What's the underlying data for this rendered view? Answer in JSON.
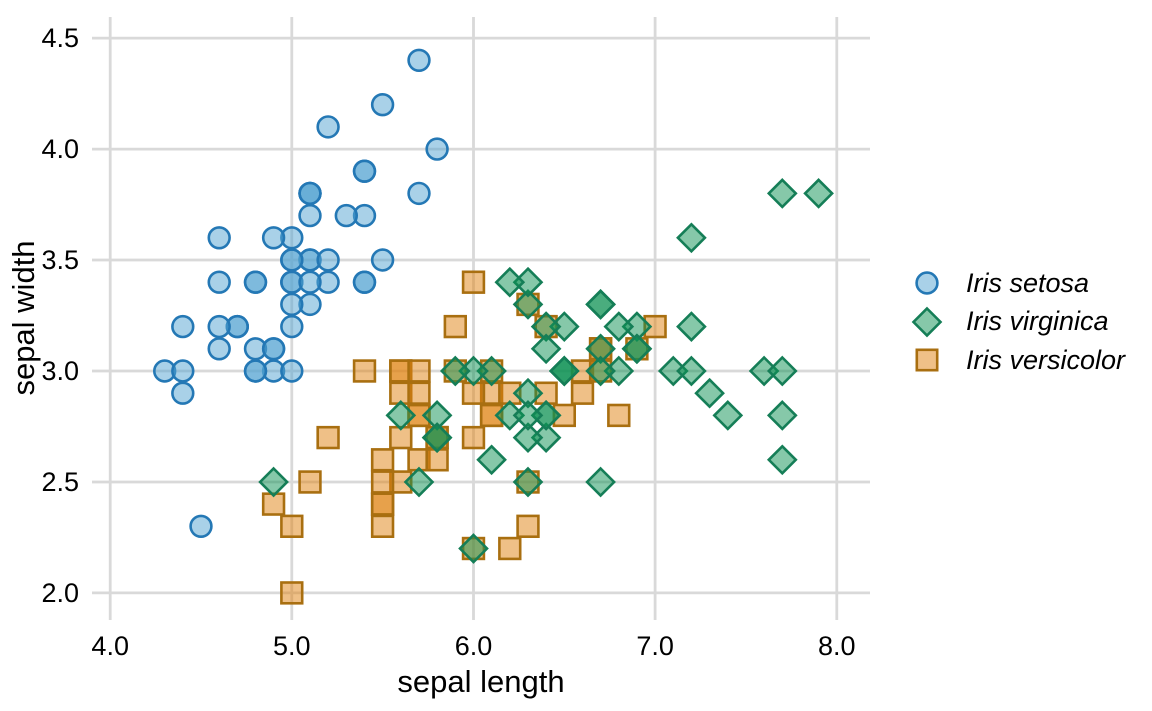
{
  "figure": {
    "background": "#ffffff"
  },
  "chart_data": {
    "type": "scatter",
    "title": "",
    "xlabel": "sepal length",
    "ylabel": "sepal width",
    "xlim": [
      3.9,
      8.183
    ],
    "ylim": [
      1.878,
      4.595
    ],
    "grid": true,
    "grid_color": "#d9d9d9",
    "text_color": "#000000",
    "legend_position": "right",
    "x_ticks": {
      "values": [
        4.0,
        5.0,
        6.0,
        7.0,
        8.0
      ],
      "labels": [
        "4.0",
        "5.0",
        "6.0",
        "7.0",
        "8.0"
      ]
    },
    "y_ticks": {
      "values": [
        2.0,
        2.5,
        3.0,
        3.5,
        4.0,
        4.5
      ],
      "labels": [
        "2.0",
        "2.5",
        "3.0",
        "3.5",
        "4.0",
        "4.5"
      ]
    },
    "z_order": [
      0,
      2,
      1
    ],
    "series": [
      {
        "name": "Iris setosa",
        "marker": "circle",
        "fill": "#53a3d1",
        "stroke": "#2478b5",
        "fill_opacity": 0.5,
        "points": [
          [
            5.1,
            3.5
          ],
          [
            4.9,
            3.0
          ],
          [
            4.7,
            3.2
          ],
          [
            4.6,
            3.1
          ],
          [
            5.0,
            3.6
          ],
          [
            5.4,
            3.9
          ],
          [
            4.6,
            3.4
          ],
          [
            5.0,
            3.4
          ],
          [
            4.4,
            2.9
          ],
          [
            4.9,
            3.1
          ],
          [
            5.4,
            3.7
          ],
          [
            4.8,
            3.4
          ],
          [
            4.8,
            3.0
          ],
          [
            4.3,
            3.0
          ],
          [
            5.8,
            4.0
          ],
          [
            5.7,
            4.4
          ],
          [
            5.4,
            3.9
          ],
          [
            5.1,
            3.5
          ],
          [
            5.7,
            3.8
          ],
          [
            5.1,
            3.8
          ],
          [
            5.4,
            3.4
          ],
          [
            5.1,
            3.7
          ],
          [
            4.6,
            3.6
          ],
          [
            5.1,
            3.3
          ],
          [
            4.8,
            3.4
          ],
          [
            5.0,
            3.0
          ],
          [
            5.0,
            3.4
          ],
          [
            5.2,
            3.5
          ],
          [
            5.2,
            3.4
          ],
          [
            4.7,
            3.2
          ],
          [
            4.8,
            3.1
          ],
          [
            5.4,
            3.4
          ],
          [
            5.2,
            4.1
          ],
          [
            5.5,
            4.2
          ],
          [
            4.9,
            3.1
          ],
          [
            5.0,
            3.2
          ],
          [
            5.5,
            3.5
          ],
          [
            4.9,
            3.6
          ],
          [
            4.4,
            3.0
          ],
          [
            5.1,
            3.4
          ],
          [
            5.0,
            3.5
          ],
          [
            4.5,
            2.3
          ],
          [
            4.4,
            3.2
          ],
          [
            5.0,
            3.5
          ],
          [
            5.1,
            3.8
          ],
          [
            4.8,
            3.0
          ],
          [
            5.1,
            3.8
          ],
          [
            4.6,
            3.2
          ],
          [
            5.3,
            3.7
          ],
          [
            5.0,
            3.3
          ]
        ]
      },
      {
        "name": "Iris virginica",
        "marker": "diamond",
        "fill": "#0e9153",
        "stroke": "#157e57",
        "fill_opacity": 0.5,
        "points": [
          [
            6.3,
            3.3
          ],
          [
            5.8,
            2.7
          ],
          [
            7.1,
            3.0
          ],
          [
            6.3,
            2.9
          ],
          [
            6.5,
            3.0
          ],
          [
            7.6,
            3.0
          ],
          [
            4.9,
            2.5
          ],
          [
            7.3,
            2.9
          ],
          [
            6.7,
            2.5
          ],
          [
            7.2,
            3.6
          ],
          [
            6.5,
            3.2
          ],
          [
            6.4,
            2.7
          ],
          [
            6.8,
            3.0
          ],
          [
            5.7,
            2.5
          ],
          [
            5.8,
            2.8
          ],
          [
            6.4,
            3.2
          ],
          [
            6.5,
            3.0
          ],
          [
            7.7,
            3.8
          ],
          [
            7.7,
            2.6
          ],
          [
            6.0,
            2.2
          ],
          [
            6.9,
            3.2
          ],
          [
            5.6,
            2.8
          ],
          [
            7.7,
            2.8
          ],
          [
            6.3,
            2.7
          ],
          [
            6.7,
            3.3
          ],
          [
            7.2,
            3.2
          ],
          [
            6.2,
            2.8
          ],
          [
            6.1,
            3.0
          ],
          [
            6.4,
            2.8
          ],
          [
            7.2,
            3.0
          ],
          [
            7.4,
            2.8
          ],
          [
            7.9,
            3.8
          ],
          [
            6.4,
            2.8
          ],
          [
            6.3,
            2.8
          ],
          [
            6.1,
            2.6
          ],
          [
            7.7,
            3.0
          ],
          [
            6.3,
            3.4
          ],
          [
            6.4,
            3.1
          ],
          [
            6.0,
            3.0
          ],
          [
            6.9,
            3.1
          ],
          [
            6.7,
            3.1
          ],
          [
            6.9,
            3.1
          ],
          [
            5.8,
            2.7
          ],
          [
            6.8,
            3.2
          ],
          [
            6.7,
            3.3
          ],
          [
            6.7,
            3.0
          ],
          [
            6.3,
            2.5
          ],
          [
            6.5,
            3.0
          ],
          [
            6.2,
            3.4
          ],
          [
            5.9,
            3.0
          ]
        ]
      },
      {
        "name": "Iris versicolor",
        "marker": "square",
        "fill": "#e0820f",
        "stroke": "#a96f10",
        "fill_opacity": 0.5,
        "points": [
          [
            7.0,
            3.2
          ],
          [
            6.4,
            3.2
          ],
          [
            6.9,
            3.1
          ],
          [
            5.5,
            2.3
          ],
          [
            6.5,
            2.8
          ],
          [
            5.7,
            2.8
          ],
          [
            6.3,
            3.3
          ],
          [
            4.9,
            2.4
          ],
          [
            6.6,
            2.9
          ],
          [
            5.2,
            2.7
          ],
          [
            5.0,
            2.0
          ],
          [
            5.9,
            3.0
          ],
          [
            6.0,
            2.2
          ],
          [
            6.1,
            2.9
          ],
          [
            5.6,
            2.9
          ],
          [
            6.7,
            3.1
          ],
          [
            5.6,
            3.0
          ],
          [
            5.8,
            2.7
          ],
          [
            6.2,
            2.2
          ],
          [
            5.6,
            2.5
          ],
          [
            5.9,
            3.2
          ],
          [
            6.1,
            2.8
          ],
          [
            6.3,
            2.5
          ],
          [
            6.1,
            2.8
          ],
          [
            6.4,
            2.9
          ],
          [
            6.6,
            3.0
          ],
          [
            6.8,
            2.8
          ],
          [
            6.7,
            3.0
          ],
          [
            6.0,
            2.9
          ],
          [
            5.7,
            2.6
          ],
          [
            5.5,
            2.4
          ],
          [
            5.5,
            2.4
          ],
          [
            5.8,
            2.7
          ],
          [
            6.0,
            2.7
          ],
          [
            5.4,
            3.0
          ],
          [
            6.0,
            3.4
          ],
          [
            6.7,
            3.1
          ],
          [
            6.3,
            2.3
          ],
          [
            5.6,
            3.0
          ],
          [
            5.5,
            2.5
          ],
          [
            5.5,
            2.6
          ],
          [
            6.1,
            3.0
          ],
          [
            5.8,
            2.6
          ],
          [
            5.0,
            2.3
          ],
          [
            5.6,
            2.7
          ],
          [
            5.7,
            3.0
          ],
          [
            5.7,
            2.9
          ],
          [
            6.2,
            2.9
          ],
          [
            5.1,
            2.5
          ],
          [
            5.7,
            2.8
          ]
        ]
      }
    ]
  }
}
